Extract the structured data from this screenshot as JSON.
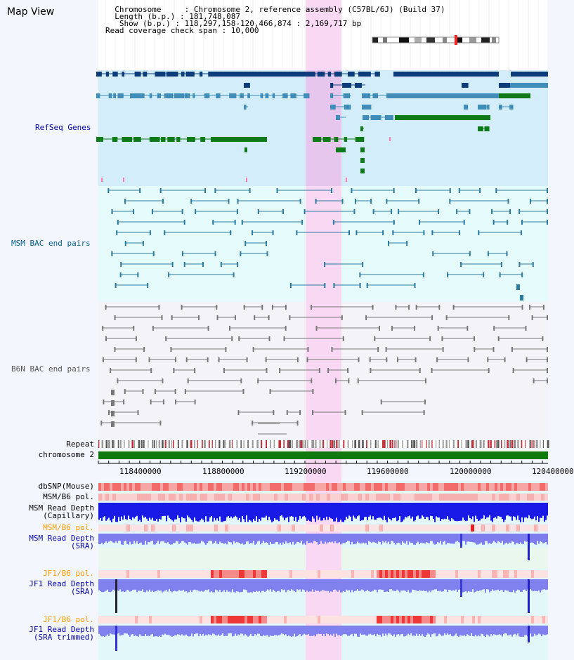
{
  "page": {
    "title": "Map View"
  },
  "info": {
    "line1": "  Chromosome     : Chromosome 2, reference assembly (C57BL/6J) (Build 37)",
    "line2": "  Length (b.p.) : 181,748,087",
    "line3": "   Show (b.p.) : 118,297,158-120,466,874 : 2,169,717 bp",
    "line4": "Read coverage check span : 10,000"
  },
  "tracks": {
    "refseq": "RefSeq Genes",
    "msm_bac": "MSM BAC end pairs",
    "b6n_bac": "B6N BAC end pairs",
    "repeat": "Repeat",
    "chromosome": "chromosome 2",
    "dbsnp": "dbSNP(Mouse)",
    "msm_b6_pol1": "MSM/B6 pol.",
    "msm_depth_cap_1": "MSM Read Depth",
    "msm_depth_cap_2": "(Capillary)",
    "msm_b6_pol2": "MSM/B6 pol.",
    "msm_depth_sra_1": "MSM Read Depth",
    "msm_depth_sra_2": "(SRA)",
    "jf1_b6_pol1": "JF1/B6 pol.",
    "jf1_depth_1": "JF1 Read Depth",
    "jf1_depth_2": "(SRA)",
    "jf1_b6_pol2": "JF1/B6 pol.",
    "jf1_trim_1": "JF1 Read Depth",
    "jf1_trim_2": "(SRA trimmed)"
  },
  "axis": {
    "ticks": [
      "118400000",
      "118800000",
      "119200000",
      "119600000",
      "120000000",
      "120400000"
    ]
  },
  "colors": {
    "highlight": "#f9d8f3",
    "refseq_bg": "#d3eefa",
    "dark_gene": "#0c3d7a",
    "mid_gene": "#3f8db8",
    "green_gene": "#0f7a1a",
    "bac_msm": "#2a7aa2",
    "bac_b6n": "#777777",
    "depth_blue": "#1a1ae6",
    "depth_light": "#7d7dee"
  }
}
